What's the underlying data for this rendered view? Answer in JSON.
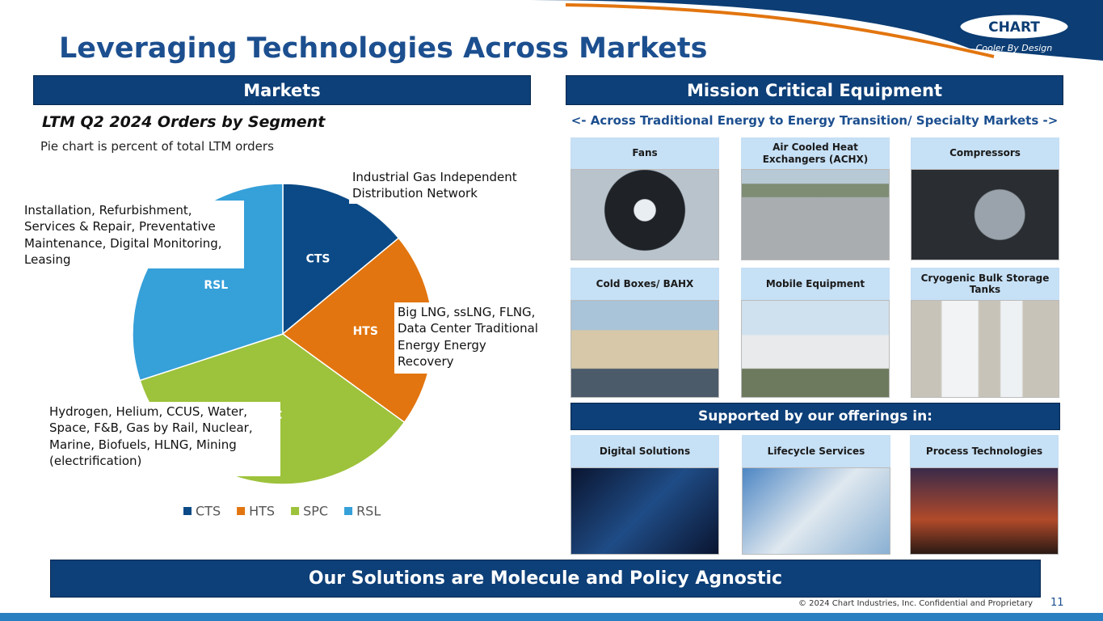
{
  "header": {
    "title": "Leveraging Technologies Across Markets",
    "logo": "CHART",
    "tagline": "Cooler By Design"
  },
  "markets": {
    "heading": "Markets",
    "subtitle": "LTM Q2 2024 Orders by Segment",
    "note": "Pie chart is percent of total LTM orders"
  },
  "chart_data": {
    "type": "pie",
    "categories": [
      "CTS",
      "HTS",
      "SPC",
      "RSL"
    ],
    "values": [
      14,
      21,
      35,
      30
    ],
    "colors": [
      "#0b4a86",
      "#e2750f",
      "#9dc23b",
      "#36a0d9"
    ],
    "legend": "bottom",
    "annotations": [
      "Industrial Gas Independent Distribution Network",
      "Big LNG, ssLNG, FLNG, Data Center Traditional Energy Energy Recovery",
      "Hydrogen, Helium, CCUS, Water, Space, F&B, Gas by Rail, Nuclear, Marine, Biofuels, HLNG, Mining (electrification)",
      "Installation, Refurbishment, Services & Repair, Preventative Maintenance, Digital Monitoring, Leasing"
    ]
  },
  "equipment": {
    "heading": "Mission Critical Equipment",
    "subheading": "<- Across Traditional Energy to Energy Transition/ Specialty Markets ->",
    "items": [
      "Fans",
      "Air Cooled Heat Exchangers (ACHX)",
      "Compressors",
      "Cold Boxes/ BAHX",
      "Mobile Equipment",
      "Cryogenic Bulk Storage Tanks"
    ]
  },
  "offerings": {
    "heading": "Supported by our offerings in:",
    "items": [
      "Digital Solutions",
      "Lifecycle Services",
      "Process Technologies"
    ]
  },
  "footer": {
    "banner": "Our Solutions are Molecule and Policy Agnostic",
    "copyright": "© 2024 Chart Industries, Inc. Confidential and Proprietary",
    "page": "11"
  }
}
